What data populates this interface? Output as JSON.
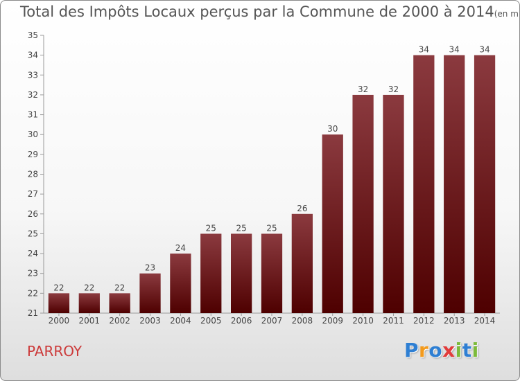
{
  "title": "Total des Impôts Locaux perçus par la Commune de 2000 à 2014",
  "title_unit": "(en milliers d'€)",
  "commune": "PARROY",
  "logo": {
    "text": "Proxiti",
    "letters": [
      {
        "ch": "P",
        "color": "#2e7fd3"
      },
      {
        "ch": "r",
        "color": "#f39a1c"
      },
      {
        "ch": "o",
        "color": "#2e7fd3"
      },
      {
        "ch": "x",
        "color": "#e23b3b"
      },
      {
        "ch": "i",
        "color": "#7dbb3a"
      },
      {
        "ch": "t",
        "color": "#2e7fd3"
      },
      {
        "ch": "i",
        "color": "#7dbb3a"
      }
    ]
  },
  "chart_data": {
    "type": "bar",
    "title": "Total des Impôts Locaux perçus par la Commune de 2000 à 2014",
    "categories": [
      "2000",
      "2001",
      "2002",
      "2003",
      "2004",
      "2005",
      "2006",
      "2007",
      "2008",
      "2009",
      "2010",
      "2011",
      "2012",
      "2013",
      "2014"
    ],
    "values": [
      22,
      22,
      22,
      23,
      24,
      25,
      25,
      25,
      26,
      30,
      32,
      32,
      34,
      34,
      34
    ],
    "data_labels": [
      "22",
      "22",
      "22",
      "23",
      "24",
      "25",
      "25",
      "25",
      "26",
      "30",
      "32",
      "32",
      "34",
      "34",
      "34"
    ],
    "ylim": [
      21,
      35
    ],
    "yticks": [
      21,
      22,
      23,
      24,
      25,
      26,
      27,
      28,
      29,
      30,
      31,
      32,
      33,
      34,
      35
    ],
    "xlabel": "",
    "ylabel": "",
    "grid": false,
    "bar_color_top": "#8b3a3f",
    "bar_color_bottom": "#4e0000"
  }
}
